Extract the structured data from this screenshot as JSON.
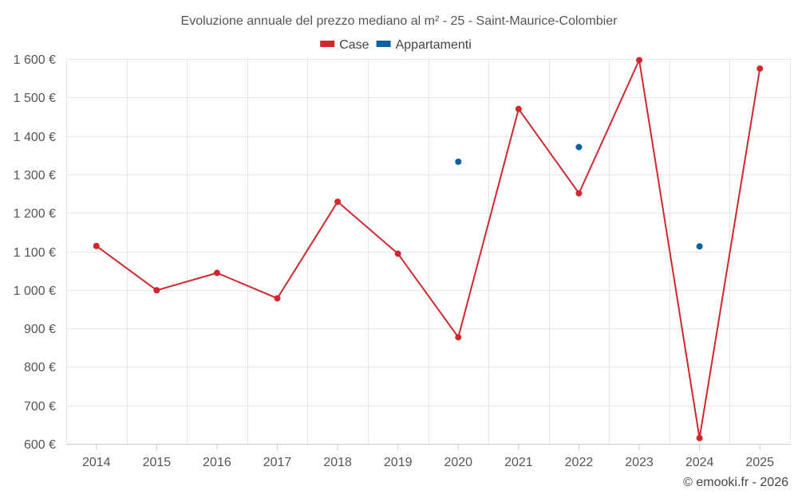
{
  "chart_data": {
    "type": "line",
    "title": "Evoluzione annuale del prezzo mediano al m² - 25 - Saint-Maurice-Colombier",
    "categories": [
      "2014",
      "2015",
      "2016",
      "2017",
      "2018",
      "2019",
      "2020",
      "2021",
      "2022",
      "2023",
      "2024",
      "2025"
    ],
    "y_tick_labels": [
      "600 €",
      "700 €",
      "800 €",
      "900 €",
      "1 000 €",
      "1 100 €",
      "1 200 €",
      "1 300 €",
      "1 400 €",
      "1 500 €",
      "1 600 €"
    ],
    "y_ticks": [
      600,
      700,
      800,
      900,
      1000,
      1100,
      1200,
      1300,
      1400,
      1500,
      1600
    ],
    "ylim": [
      600,
      1600
    ],
    "grid": true,
    "legend_position": "top-center",
    "series": [
      {
        "name": "Case",
        "color": "#d0282e",
        "style": "line",
        "values": [
          1114,
          999,
          1044,
          978,
          1229,
          1094,
          877,
          1470,
          1251,
          1597,
          615,
          1575
        ]
      },
      {
        "name": "Appartamenti",
        "color": "#0f609e",
        "style": "points",
        "values": [
          null,
          null,
          null,
          null,
          null,
          null,
          1333,
          null,
          1371,
          null,
          1113,
          null
        ]
      }
    ],
    "credit": "© emooki.fr - 2026"
  }
}
